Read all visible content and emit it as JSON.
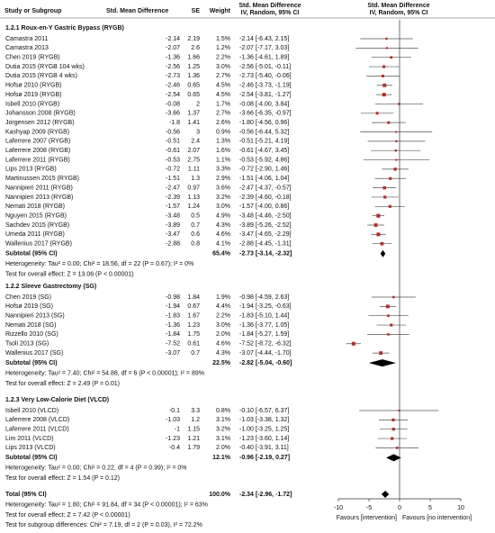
{
  "header": {
    "study": "Study or Subgroup",
    "smd": "Std. Mean Difference",
    "se": "SE",
    "weight": "Weight",
    "ci_title": "Std. Mean Difference",
    "ci_subtitle": "IV, Random, 95% CI",
    "plot_title": "Std. Mean Difference",
    "plot_subtitle": "IV, Random, 95% CI"
  },
  "groups": [
    {
      "title": "1.2.1 Roux-en-Y Gastric Bypass (RYGB)",
      "studies": [
        {
          "name": "Camastra 2011",
          "smd": -2.14,
          "se": 2.19,
          "weight": {
            "value": 1.5,
            "label": "1.5%"
          },
          "ci": "-2.14 [-6.43, 2.15]",
          "ci_low": -6.43,
          "ci_high": 2.15
        },
        {
          "name": "Camastra 2013",
          "smd": -2.07,
          "se": 2.6,
          "weight": {
            "value": 1.2,
            "label": "1.2%"
          },
          "ci": "-2.07 [-7.17, 3.03]",
          "ci_low": -7.17,
          "ci_high": 3.03
        },
        {
          "name": "Chen 2019 (RYGB)",
          "smd": -1.36,
          "se": 1.66,
          "weight": {
            "value": 2.2,
            "label": "2.2%"
          },
          "ci": "-1.36 [-4.61, 1.89]",
          "ci_low": -4.61,
          "ci_high": 1.89
        },
        {
          "name": "Dutia 2015 (RYGB 104 wks)",
          "smd": -2.56,
          "se": 1.25,
          "weight": {
            "value": 3.0,
            "label": "3.0%"
          },
          "ci": "-2.56 [-5.01, -0.11]",
          "ci_low": -5.01,
          "ci_high": -0.11
        },
        {
          "name": "Dutia 2015 (RYGB 4 wks)",
          "smd": -2.73,
          "se": 1.36,
          "weight": {
            "value": 2.7,
            "label": "2.7%"
          },
          "ci": "-2.73 [-5.40, -0.06]",
          "ci_low": -5.4,
          "ci_high": -0.06
        },
        {
          "name": "Hofsø 2010 (RYGB)",
          "smd": -2.46,
          "se": 0.65,
          "weight": {
            "value": 4.5,
            "label": "4.5%"
          },
          "ci": "-2.46 [-3.73, -1.19]",
          "ci_low": -3.73,
          "ci_high": -1.19
        },
        {
          "name": "Hofsø 2019 (RYGB)",
          "smd": -2.54,
          "se": 0.65,
          "weight": {
            "value": 4.5,
            "label": "4.5%"
          },
          "ci": "-2.54 [-3.81, -1.27]",
          "ci_low": -3.81,
          "ci_high": -1.27
        },
        {
          "name": "Isbell 2010 (RYGB)",
          "smd": -0.08,
          "se": 2,
          "weight": {
            "value": 1.7,
            "label": "1.7%"
          },
          "ci": "-0.08 [-4.00, 3.84]",
          "ci_low": -4.0,
          "ci_high": 3.84
        },
        {
          "name": "Johansson 2008 (RYGB)",
          "smd": -3.66,
          "se": 1.37,
          "weight": {
            "value": 2.7,
            "label": "2.7%"
          },
          "ci": "-3.66 [-6.35, -0.97]",
          "ci_low": -6.35,
          "ci_high": -0.97
        },
        {
          "name": "Jorgensen 2012 (RYGB)",
          "smd": -1.8,
          "se": 1.41,
          "weight": {
            "value": 2.6,
            "label": "2.6%"
          },
          "ci": "-1.80 [-4.56, 0.96]",
          "ci_low": -4.56,
          "ci_high": 0.96
        },
        {
          "name": "Kashyap 2009 (RYGB)",
          "smd": -0.56,
          "se": 3,
          "weight": {
            "value": 0.9,
            "label": "0.9%"
          },
          "ci": "-0.56 [-6.44, 5.32]",
          "ci_low": -6.44,
          "ci_high": 5.32
        },
        {
          "name": "Laferrere 2007 (RYGB)",
          "smd": -0.51,
          "se": 2.4,
          "weight": {
            "value": 1.3,
            "label": "1.3%"
          },
          "ci": "-0.51 [-5.21, 4.19]",
          "ci_low": -5.21,
          "ci_high": 4.19
        },
        {
          "name": "Laferrere 2008 (RYGB)",
          "smd": -0.61,
          "se": 2.07,
          "weight": {
            "value": 1.6,
            "label": "1.6%"
          },
          "ci": "-0.61 [-4.67, 3.45]",
          "ci_low": -4.67,
          "ci_high": 3.45
        },
        {
          "name": "Laferrere 2011 (RYGB)",
          "smd": -0.53,
          "se": 2.75,
          "weight": {
            "value": 1.1,
            "label": "1.1%"
          },
          "ci": "-0.53 [-5.92, 4.86]",
          "ci_low": -5.92,
          "ci_high": 4.86
        },
        {
          "name": "Lips 2013 (RYGB)",
          "smd": -0.72,
          "se": 1.11,
          "weight": {
            "value": 3.3,
            "label": "3.3%"
          },
          "ci": "-0.72 [-2.90, 1.46]",
          "ci_low": -2.9,
          "ci_high": 1.46
        },
        {
          "name": "Martinussen 2015 (RYGB)",
          "smd": -1.51,
          "se": 1.3,
          "weight": {
            "value": 2.9,
            "label": "2.9%"
          },
          "ci": "-1.51 [-4.06, 1.04]",
          "ci_low": -4.06,
          "ci_high": 1.04
        },
        {
          "name": "Nannipieri 2011 (RYGB)",
          "smd": -2.47,
          "se": 0.97,
          "weight": {
            "value": 3.6,
            "label": "3.6%"
          },
          "ci": "-2.47 [-4.37, -0.57]",
          "ci_low": -4.37,
          "ci_high": -0.57
        },
        {
          "name": "Nannipieri 2013 (RYGB)",
          "smd": -2.39,
          "se": 1.13,
          "weight": {
            "value": 3.2,
            "label": "3.2%"
          },
          "ci": "-2.39 [-4.60, -0.18]",
          "ci_low": -4.6,
          "ci_high": -0.18
        },
        {
          "name": "Nemati 2018 (RYGB)",
          "smd": -1.57,
          "se": 1.24,
          "weight": {
            "value": 3.0,
            "label": "3.0%"
          },
          "ci": "-1.57 [-4.00, 0.86]",
          "ci_low": -4.0,
          "ci_high": 0.86
        },
        {
          "name": "Nguyen 2015 (RYGB)",
          "smd": -3.48,
          "se": 0.5,
          "weight": {
            "value": 4.9,
            "label": "4.9%"
          },
          "ci": "-3.48 [-4.46, -2.50]",
          "ci_low": -4.46,
          "ci_high": -2.5
        },
        {
          "name": "Sachdev 2015 (RYGB)",
          "smd": -3.89,
          "se": 0.7,
          "weight": {
            "value": 4.3,
            "label": "4.3%"
          },
          "ci": "-3.89 [-5.26, -2.52]",
          "ci_low": -5.26,
          "ci_high": -2.52
        },
        {
          "name": "Umeda 2011 (RYGB)",
          "smd": -3.47,
          "se": 0.6,
          "weight": {
            "value": 4.6,
            "label": "4.6%"
          },
          "ci": "-3.47 [-4.65, -2.29]",
          "ci_low": -4.65,
          "ci_high": -2.29
        },
        {
          "name": "Wallenius 2017 (RYGB)",
          "smd": -2.88,
          "se": 0.8,
          "weight": {
            "value": 4.1,
            "label": "4.1%"
          },
          "ci": "-2.88 [-4.45, -1.31]",
          "ci_low": -4.45,
          "ci_high": -1.31
        }
      ],
      "subtotal": {
        "label": "Subtotal (95% CI)",
        "weight": {
          "value": 65.4,
          "label": "65.4%"
        },
        "ci": "-2.73 [-3.14, -2.32]",
        "estimate": -2.73,
        "ci_low": -3.14,
        "ci_high": -2.32
      },
      "heterogeneity": "Heterogeneity: Tau² = 0.00; Chi² = 18.56, df = 22 (P = 0.67); I² = 0%",
      "overall_effect": "Test for overall effect: Z = 13.06 (P < 0.00001)"
    },
    {
      "title": "1.2.2 Sleeve Gastrectomy (SG)",
      "studies": [
        {
          "name": "Chen 2019 (SG)",
          "smd": -0.98,
          "se": 1.84,
          "weight": {
            "value": 1.9,
            "label": "1.9%"
          },
          "ci": "-0.98 [-4.59, 2.63]",
          "ci_low": -4.59,
          "ci_high": 2.63
        },
        {
          "name": "Hofsø 2019 (SG)",
          "smd": -1.94,
          "se": 0.67,
          "weight": {
            "value": 4.4,
            "label": "4.4%"
          },
          "ci": "-1.94 [-3.25, -0.63]",
          "ci_low": -3.25,
          "ci_high": -0.63
        },
        {
          "name": "Nannipieri 2013 (SG)",
          "smd": -1.83,
          "se": 1.67,
          "weight": {
            "value": 2.2,
            "label": "2.2%"
          },
          "ci": "-1.83 [-5.10, 1.44]",
          "ci_low": -5.1,
          "ci_high": 1.44
        },
        {
          "name": "Nemati 2018 (SG)",
          "smd": -1.36,
          "se": 1.23,
          "weight": {
            "value": 3.0,
            "label": "3.0%"
          },
          "ci": "-1.36 [-3.77, 1.05]",
          "ci_low": -3.77,
          "ci_high": 1.05
        },
        {
          "name": "Rizzello 2010 (SG)",
          "smd": -1.84,
          "se": 1.75,
          "weight": {
            "value": 2.0,
            "label": "2.0%"
          },
          "ci": "-1.84 [-5.27, 1.59]",
          "ci_low": -5.27,
          "ci_high": 1.59
        },
        {
          "name": "Tsoli 2013 (SG)",
          "smd": -7.52,
          "se": 0.61,
          "weight": {
            "value": 4.6,
            "label": "4.6%"
          },
          "ci": "-7.52 [-8.72, -6.32]",
          "ci_low": -8.72,
          "ci_high": -6.32
        },
        {
          "name": "Wallenius 2017 (SG)",
          "smd": -3.07,
          "se": 0.7,
          "weight": {
            "value": 4.3,
            "label": "4.3%"
          },
          "ci": "-3.07 [-4.44, -1.70]",
          "ci_low": -4.44,
          "ci_high": -1.7
        }
      ],
      "subtotal": {
        "label": "Subtotal (95% CI)",
        "weight": {
          "value": 22.5,
          "label": "22.5%"
        },
        "ci": "-2.82 [-5.04, -0.60]",
        "estimate": -2.82,
        "ci_low": -5.04,
        "ci_high": -0.6
      },
      "heterogeneity": "Heterogeneity: Tau² = 7.40; Chi² = 54.88, df = 6 (P < 0.00001); I² = 89%",
      "overall_effect": "Test for overall effect: Z = 2.49 (P = 0.01)"
    },
    {
      "title": "1.2.3 Very Low-Calorie Diet (VLCD)",
      "studies": [
        {
          "name": "Isbell 2010 (VLCD)",
          "smd": -0.1,
          "se": 3.3,
          "weight": {
            "value": 0.8,
            "label": "0.8%"
          },
          "ci": "-0.10 [-6.57, 6.37]",
          "ci_low": -6.57,
          "ci_high": 6.37
        },
        {
          "name": "Laferrere 2008 (VLCD)",
          "smd": -1.03,
          "se": 1.2,
          "weight": {
            "value": 3.1,
            "label": "3.1%"
          },
          "ci": "-1.03 [-3.38, 1.32]",
          "ci_low": -3.38,
          "ci_high": 1.32
        },
        {
          "name": "Laferrere 2011 (VLCD)",
          "smd": -1,
          "se": 1.15,
          "weight": {
            "value": 3.2,
            "label": "3.2%"
          },
          "ci": "-1.00 [-3.25, 1.25]",
          "ci_low": -3.25,
          "ci_high": 1.25
        },
        {
          "name": "Lim 2011 (VLCD)",
          "smd": -1.23,
          "se": 1.21,
          "weight": {
            "value": 3.1,
            "label": "3.1%"
          },
          "ci": "-1.23 [-3.60, 1.14]",
          "ci_low": -3.6,
          "ci_high": 1.14
        },
        {
          "name": "Lips 2013 (VLCD)",
          "smd": -0.4,
          "se": 1.79,
          "weight": {
            "value": 2.0,
            "label": "2.0%"
          },
          "ci": "-0.40 [-3.91, 3.11]",
          "ci_low": -3.91,
          "ci_high": 3.11
        }
      ],
      "subtotal": {
        "label": "Subtotal (95% CI)",
        "weight": {
          "value": 12.1,
          "label": "12.1%"
        },
        "ci": "-0.96 [-2.19, 0.27]",
        "estimate": -0.96,
        "ci_low": -2.19,
        "ci_high": 0.27
      },
      "heterogeneity": "Heterogeneity: Tau² = 0.00; Chi² = 0.22, df = 4 (P = 0.99); I² = 0%",
      "overall_effect": "Test for overall effect: Z = 1.54 (P = 0.12)"
    }
  ],
  "total": {
    "label": "Total (95% CI)",
    "weight": {
      "value": 100,
      "label": "100.0%"
    },
    "ci": "-2.34 [-2.96, -1.72]",
    "estimate": -2.34,
    "ci_low": -2.96,
    "ci_high": -1.72,
    "heterogeneity": "Heterogeneity: Tau² = 1.80; Chi² = 91.84, df = 34 (P < 0.00001); I² = 63%",
    "overall_effect": "Test for overall effect: Z = 7.42 (P < 0.00001)",
    "subgroup_differences": "Test for subgroup differences: Chi² = 7.19, df = 2 (P = 0.03), I² = 72.2%"
  },
  "axis": {
    "xlim": [
      -10,
      10
    ],
    "xticks": [
      -10,
      -5,
      0,
      5,
      10
    ],
    "left_label": "Favours [intervention]",
    "right_label": "Favours [no intervention]"
  },
  "style": {
    "marker_color": "#b03030",
    "whisker_color": "#555555",
    "diamond_color": "#000000"
  }
}
